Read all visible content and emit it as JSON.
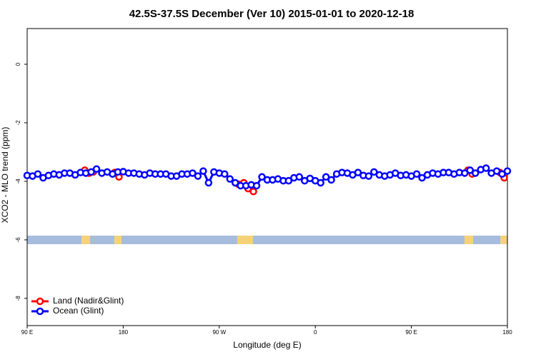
{
  "chart_data": {
    "type": "line",
    "title": "42.5S-37.5S December (Ver 10)   2015-01-01 to 2020-12-18",
    "xlabel": "Longitude (deg E)",
    "ylabel": "XCO2 - MLO trend (ppm)",
    "xlim": [
      90,
      540
    ],
    "xticks": [
      {
        "value": 90,
        "label": "90 E"
      },
      180,
      {
        "value": 270,
        "label": "90 W"
      },
      {
        "value": 360,
        "label": "0"
      },
      {
        "value": 450,
        "label": "90 E"
      },
      {
        "value": 540,
        "label": "180"
      }
    ],
    "ylim": [
      -8.93,
      1.22
    ],
    "yticks": [
      0,
      -2,
      -4,
      -6,
      -8
    ],
    "legend": "bottom-left",
    "series": [
      {
        "name": "Land (Nadir&Glint)",
        "color": "#ff0000",
        "x": [
          144,
          148,
          152,
          null,
          172,
          176,
          null,
          288,
          293,
          297,
          302,
          null,
          503,
          507,
          null,
          533,
          537
        ],
        "values": [
          -3.62,
          -3.72,
          -3.68,
          null,
          -3.7,
          -3.85,
          null,
          -4.1,
          -4.05,
          -4.25,
          -4.35,
          null,
          -3.62,
          -3.75,
          null,
          -3.7,
          -3.88
        ]
      },
      {
        "name": "Ocean (Glint)",
        "color": "#0000ff",
        "x": [
          90,
          95,
          100,
          105,
          110,
          115,
          120,
          125,
          130,
          135,
          140,
          145,
          150,
          155,
          160,
          165,
          170,
          175,
          180,
          185,
          190,
          195,
          200,
          205,
          210,
          215,
          220,
          225,
          230,
          235,
          240,
          245,
          250,
          255,
          260,
          265,
          270,
          275,
          280,
          285,
          290,
          295,
          300,
          305,
          310,
          315,
          320,
          325,
          330,
          335,
          340,
          345,
          350,
          355,
          360,
          365,
          370,
          375,
          380,
          385,
          390,
          395,
          400,
          405,
          410,
          415,
          420,
          425,
          430,
          435,
          440,
          445,
          450,
          455,
          460,
          465,
          470,
          475,
          480,
          485,
          490,
          495,
          500,
          505,
          510,
          515,
          520,
          525,
          530,
          535,
          540
        ],
        "values": [
          -3.8,
          -3.82,
          -3.75,
          -3.88,
          -3.8,
          -3.75,
          -3.78,
          -3.72,
          -3.72,
          -3.78,
          -3.7,
          -3.72,
          -3.68,
          -3.58,
          -3.72,
          -3.68,
          -3.75,
          -3.68,
          -3.67,
          -3.72,
          -3.72,
          -3.75,
          -3.78,
          -3.72,
          -3.75,
          -3.75,
          -3.75,
          -3.82,
          -3.82,
          -3.75,
          -3.75,
          -3.72,
          -3.82,
          -3.65,
          -4.05,
          -3.68,
          -3.72,
          -3.75,
          -3.92,
          -4.05,
          -4.15,
          -4.15,
          -4.12,
          -4.15,
          -3.85,
          -3.95,
          -3.95,
          -3.92,
          -3.98,
          -3.98,
          -3.88,
          -3.85,
          -3.98,
          -3.9,
          -3.98,
          -4.05,
          -3.85,
          -3.95,
          -3.75,
          -3.7,
          -3.72,
          -3.78,
          -3.7,
          -3.8,
          -3.82,
          -3.68,
          -3.78,
          -3.82,
          -3.78,
          -3.72,
          -3.8,
          -3.78,
          -3.82,
          -3.75,
          -3.88,
          -3.78,
          -3.72,
          -3.75,
          -3.7,
          -3.7,
          -3.75,
          -3.7,
          -3.72,
          -3.62,
          -3.72,
          -3.6,
          -3.55,
          -3.72,
          -3.65,
          -3.75,
          -3.65
        ]
      }
    ]
  }
}
